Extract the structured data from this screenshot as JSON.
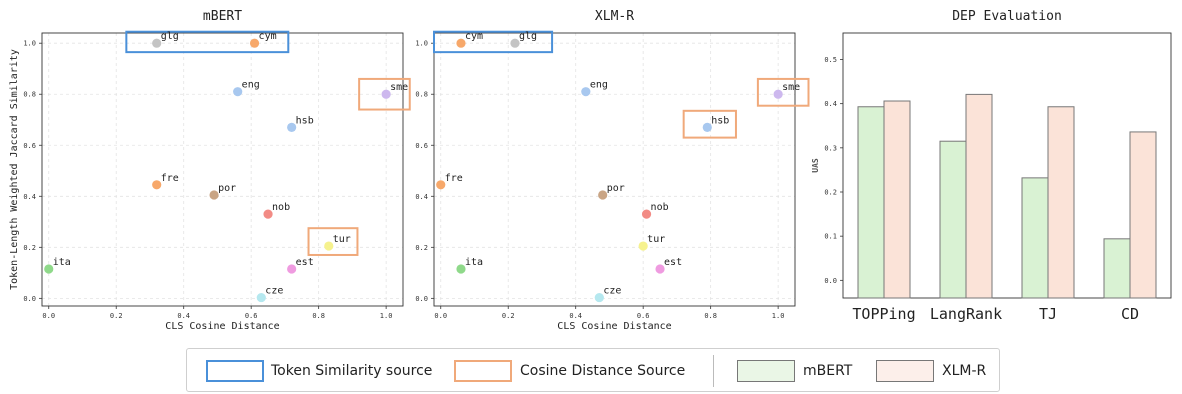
{
  "colors": {
    "token_box": "#4a90d9",
    "cosine_box": "#f0a97a",
    "mbert_bar": "#d9f2d3",
    "xlmr_bar": "#fbe3d8",
    "bar_edge": "#777777"
  },
  "chart_data": [
    {
      "type": "scatter",
      "title": "mBERT",
      "xlabel": "CLS Cosine Distance",
      "ylabel": "Token-Length Weighted Jaccard Similarity",
      "xlim": [
        -0.02,
        1.05
      ],
      "ylim": [
        -0.03,
        1.04
      ],
      "xticks": [
        "0.0",
        "0.2",
        "0.4",
        "0.6",
        "0.8",
        "1.0"
      ],
      "yticks": [
        "0.0",
        "0.2",
        "0.4",
        "0.6",
        "0.8",
        "1.0"
      ],
      "grid": true,
      "points": [
        {
          "label": "glg",
          "x": 0.32,
          "y": 1.0,
          "color": "#c4c4c4"
        },
        {
          "label": "cym",
          "x": 0.61,
          "y": 1.0,
          "color": "#f7a86a"
        },
        {
          "label": "eng",
          "x": 0.56,
          "y": 0.81,
          "color": "#a8c8ef"
        },
        {
          "label": "sme",
          "x": 1.0,
          "y": 0.8,
          "color": "#cdb8ee"
        },
        {
          "label": "hsb",
          "x": 0.72,
          "y": 0.67,
          "color": "#a8c8ef"
        },
        {
          "label": "fre",
          "x": 0.32,
          "y": 0.445,
          "color": "#f7a86a"
        },
        {
          "label": "por",
          "x": 0.49,
          "y": 0.405,
          "color": "#c9a585"
        },
        {
          "label": "nob",
          "x": 0.65,
          "y": 0.33,
          "color": "#f28b85"
        },
        {
          "label": "tur",
          "x": 0.83,
          "y": 0.205,
          "color": "#f6f28e"
        },
        {
          "label": "ita",
          "x": 0.0,
          "y": 0.115,
          "color": "#8fd98a"
        },
        {
          "label": "est",
          "x": 0.72,
          "y": 0.115,
          "color": "#ef9be0"
        },
        {
          "label": "cze",
          "x": 0.63,
          "y": 0.003,
          "color": "#b5e8ef"
        }
      ],
      "boxes": [
        {
          "kind": "token",
          "x0": 0.23,
          "x1": 0.71,
          "y0": 0.965,
          "y1": 1.045
        },
        {
          "kind": "cosine",
          "x0": 0.92,
          "x1": 1.07,
          "y0": 0.74,
          "y1": 0.86
        },
        {
          "kind": "cosine",
          "x0": 0.77,
          "x1": 0.915,
          "y0": 0.17,
          "y1": 0.275
        }
      ]
    },
    {
      "type": "scatter",
      "title": "XLM-R",
      "xlabel": "CLS Cosine Distance",
      "ylabel": "",
      "xlim": [
        -0.02,
        1.05
      ],
      "ylim": [
        -0.03,
        1.04
      ],
      "xticks": [
        "0.0",
        "0.2",
        "0.4",
        "0.6",
        "0.8",
        "1.0"
      ],
      "yticks": [
        "0.0",
        "0.2",
        "0.4",
        "0.6",
        "0.8",
        "1.0"
      ],
      "grid": true,
      "points": [
        {
          "label": "cym",
          "x": 0.06,
          "y": 1.0,
          "color": "#f7a86a"
        },
        {
          "label": "glg",
          "x": 0.22,
          "y": 1.0,
          "color": "#c4c4c4"
        },
        {
          "label": "eng",
          "x": 0.43,
          "y": 0.81,
          "color": "#a8c8ef"
        },
        {
          "label": "sme",
          "x": 1.0,
          "y": 0.8,
          "color": "#cdb8ee"
        },
        {
          "label": "hsb",
          "x": 0.79,
          "y": 0.67,
          "color": "#a8c8ef"
        },
        {
          "label": "fre",
          "x": 0.0,
          "y": 0.445,
          "color": "#f7a86a"
        },
        {
          "label": "por",
          "x": 0.48,
          "y": 0.405,
          "color": "#c9a585"
        },
        {
          "label": "nob",
          "x": 0.61,
          "y": 0.33,
          "color": "#f28b85"
        },
        {
          "label": "tur",
          "x": 0.6,
          "y": 0.205,
          "color": "#f6f28e"
        },
        {
          "label": "ita",
          "x": 0.06,
          "y": 0.115,
          "color": "#8fd98a"
        },
        {
          "label": "est",
          "x": 0.65,
          "y": 0.115,
          "color": "#ef9be0"
        },
        {
          "label": "cze",
          "x": 0.47,
          "y": 0.003,
          "color": "#b5e8ef"
        }
      ],
      "boxes": [
        {
          "kind": "token",
          "x0": -0.02,
          "x1": 0.33,
          "y0": 0.965,
          "y1": 1.045
        },
        {
          "kind": "cosine",
          "x0": 0.94,
          "x1": 1.09,
          "y0": 0.755,
          "y1": 0.86
        },
        {
          "kind": "cosine",
          "x0": 0.72,
          "x1": 0.875,
          "y0": 0.63,
          "y1": 0.735
        }
      ]
    },
    {
      "type": "bar",
      "title": "DEP Evaluation",
      "xlabel": "",
      "ylabel": "UAS",
      "categories": [
        "TOPPing",
        "LangRank",
        "TJ",
        "CD"
      ],
      "ylim": [
        -0.04,
        0.56
      ],
      "yticks": [
        "0.0",
        "0.1",
        "0.2",
        "0.3",
        "0.4",
        "0.5"
      ],
      "grid": false,
      "series": [
        {
          "name": "mBERT",
          "values": [
            0.393,
            0.315,
            0.232,
            0.094
          ]
        },
        {
          "name": "XLM-R",
          "values": [
            0.406,
            0.421,
            0.393,
            0.336
          ]
        }
      ]
    }
  ],
  "legend": {
    "token_label": "Token Similarity source",
    "cosine_label": "Cosine Distance Source",
    "mbert_label": "mBERT",
    "xlmr_label": "XLM-R"
  }
}
